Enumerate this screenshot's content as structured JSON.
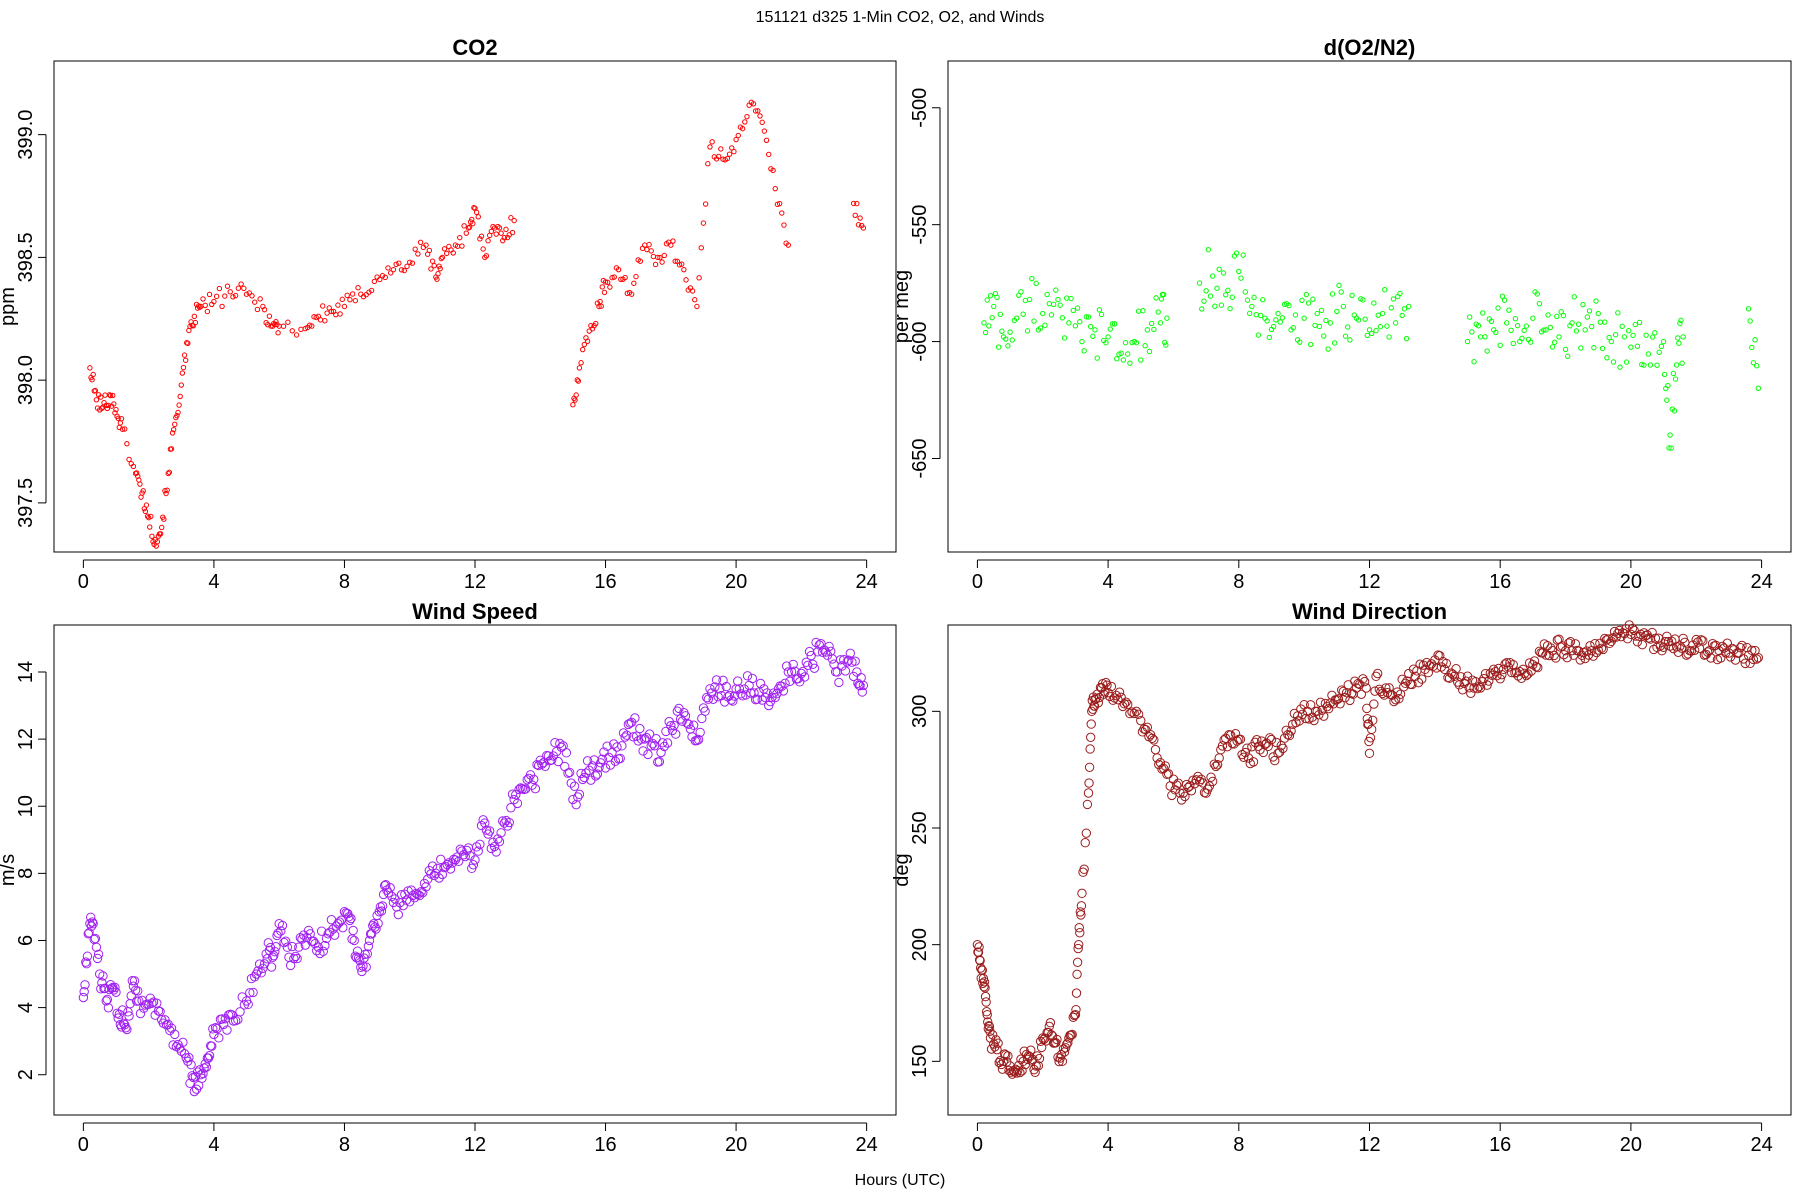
{
  "figure": {
    "title": "151121   d325   1-Min CO2, O2, and Winds",
    "xlabel": "Hours (UTC)"
  },
  "chart_data": [
    {
      "type": "scatter",
      "title": "CO2",
      "xlabel": "",
      "ylabel": "ppm",
      "xlim": [
        -0.9,
        24.9
      ],
      "ylim": [
        397.3,
        399.3
      ],
      "xticks": [
        0,
        4,
        8,
        12,
        16,
        20,
        24
      ],
      "yticks": [
        397.5,
        398.0,
        398.5,
        399.0
      ],
      "ytick_labels": [
        "397.5",
        "398.0",
        "398.5",
        "399.0"
      ],
      "grid": false,
      "marker_color": "#ff0000",
      "marker_size": "small",
      "series": [
        {
          "x": [
            0.2,
            0.4,
            0.6,
            0.8,
            1.0,
            1.2,
            1.6,
            1.8,
            2.0,
            2.2,
            2.4,
            2.6,
            2.8,
            3.0,
            3.2,
            3.4,
            3.6,
            4.0,
            4.5,
            5.0,
            5.5,
            5.8,
            6.0,
            6.8,
            7.2,
            7.6,
            8.0,
            8.5,
            9.0,
            9.5,
            10.0,
            10.5,
            10.8,
            11.0,
            11.4,
            11.8,
            12.0,
            12.3,
            12.6,
            12.9,
            13.2,
            15.0,
            15.2,
            15.5,
            15.8,
            16.0,
            16.4,
            16.8,
            17.2,
            17.6,
            18.0,
            18.4,
            18.8,
            19.2,
            19.6,
            20.0,
            20.4,
            20.8,
            21.2,
            21.6,
            23.6,
            23.9
          ],
          "y": [
            398.05,
            397.92,
            397.89,
            397.94,
            397.88,
            397.8,
            397.62,
            397.54,
            397.44,
            397.35,
            397.4,
            397.62,
            397.82,
            397.98,
            398.15,
            398.26,
            398.3,
            398.32,
            398.36,
            398.35,
            398.3,
            398.22,
            398.22,
            398.21,
            398.26,
            398.28,
            398.3,
            398.35,
            398.42,
            398.45,
            398.48,
            398.55,
            398.42,
            398.5,
            398.55,
            398.62,
            398.7,
            398.5,
            398.62,
            398.58,
            398.65,
            397.9,
            398.05,
            398.2,
            398.3,
            398.4,
            398.45,
            398.35,
            398.55,
            398.5,
            398.55,
            398.45,
            398.3,
            398.95,
            398.9,
            398.98,
            399.12,
            399.05,
            398.78,
            398.55,
            398.72,
            398.62
          ]
        }
      ]
    },
    {
      "type": "scatter",
      "title": "d(O2/N2)",
      "xlabel": "",
      "ylabel": "per meg",
      "xlim": [
        -0.9,
        24.9
      ],
      "ylim": [
        -690,
        -480
      ],
      "xticks": [
        0,
        4,
        8,
        12,
        16,
        20,
        24
      ],
      "yticks": [
        -650,
        -600,
        -550,
        -500
      ],
      "ytick_labels": [
        "-650",
        "-600",
        "-550",
        "-500"
      ],
      "grid": false,
      "marker_color": "#00ff00",
      "marker_size": "small",
      "series": [
        {
          "x": [
            0.2,
            0.5,
            0.8,
            1.2,
            1.6,
            2.0,
            2.4,
            2.8,
            3.2,
            3.6,
            4.0,
            4.4,
            4.8,
            5.2,
            5.6,
            5.8,
            6.8,
            7.2,
            7.6,
            8.0,
            8.4,
            8.8,
            9.2,
            9.6,
            10.0,
            10.4,
            10.8,
            11.2,
            11.6,
            12.0,
            12.4,
            12.8,
            13.2,
            15.0,
            15.4,
            15.8,
            16.2,
            16.6,
            17.0,
            17.4,
            17.8,
            18.2,
            18.6,
            19.0,
            19.4,
            19.8,
            20.2,
            20.6,
            21.0,
            21.2,
            21.4,
            21.6,
            23.6,
            23.9
          ],
          "y": [
            -592,
            -585,
            -598,
            -590,
            -582,
            -588,
            -578,
            -592,
            -600,
            -595,
            -598,
            -605,
            -600,
            -595,
            -592,
            -590,
            -575,
            -572,
            -580,
            -570,
            -585,
            -590,
            -588,
            -595,
            -590,
            -588,
            -592,
            -585,
            -590,
            -595,
            -588,
            -592,
            -585,
            -600,
            -598,
            -595,
            -592,
            -600,
            -590,
            -595,
            -598,
            -592,
            -595,
            -588,
            -600,
            -598,
            -602,
            -610,
            -600,
            -640,
            -610,
            -598,
            -586,
            -620
          ]
        }
      ]
    },
    {
      "type": "scatter",
      "title": "Wind Speed",
      "xlabel": "",
      "ylabel": "m/s",
      "xlim": [
        -0.9,
        24.9
      ],
      "ylim": [
        0.8,
        15.4
      ],
      "xticks": [
        0,
        4,
        8,
        12,
        16,
        20,
        24
      ],
      "yticks": [
        2,
        4,
        6,
        8,
        10,
        12,
        14
      ],
      "ytick_labels": [
        "2",
        "4",
        "6",
        "8",
        "10",
        "12",
        "14"
      ],
      "grid": false,
      "marker_color": "#a020f0",
      "marker_size": "large",
      "series": [
        {
          "x": [
            0.0,
            0.15,
            0.3,
            0.5,
            0.7,
            0.9,
            1.1,
            1.3,
            1.5,
            1.7,
            2.0,
            2.3,
            2.6,
            2.9,
            3.2,
            3.4,
            3.6,
            3.8,
            4.0,
            4.3,
            4.6,
            5.0,
            5.3,
            5.6,
            5.8,
            6.0,
            6.3,
            6.6,
            6.9,
            7.2,
            7.5,
            7.8,
            8.1,
            8.3,
            8.5,
            8.7,
            8.9,
            9.1,
            9.3,
            9.6,
            9.9,
            10.2,
            10.5,
            10.8,
            11.1,
            11.4,
            11.7,
            12.0,
            12.3,
            12.6,
            12.9,
            13.2,
            13.5,
            13.8,
            14.1,
            14.4,
            14.7,
            15.0,
            15.3,
            15.6,
            15.9,
            16.2,
            16.5,
            16.8,
            17.1,
            17.4,
            17.7,
            18.0,
            18.3,
            18.6,
            18.9,
            19.2,
            19.5,
            19.8,
            20.1,
            20.4,
            20.7,
            21.0,
            21.3,
            21.6,
            21.9,
            22.2,
            22.5,
            22.8,
            23.1,
            23.4,
            23.7,
            23.9
          ],
          "y": [
            4.3,
            6.2,
            6.5,
            5.0,
            4.2,
            4.6,
            3.8,
            3.4,
            4.8,
            4.2,
            4.1,
            3.9,
            3.5,
            2.9,
            2.4,
            1.5,
            2.0,
            2.5,
            3.2,
            3.5,
            3.6,
            4.2,
            5.0,
            5.6,
            5.5,
            6.5,
            5.5,
            5.8,
            6.3,
            5.8,
            6.2,
            6.5,
            6.8,
            6.0,
            5.2,
            5.6,
            6.5,
            7.0,
            7.5,
            7.0,
            7.2,
            7.4,
            7.6,
            8.0,
            8.2,
            8.4,
            8.5,
            8.4,
            9.5,
            8.8,
            9.5,
            10.2,
            10.5,
            10.8,
            11.3,
            11.5,
            11.8,
            10.2,
            10.8,
            11.2,
            11.4,
            11.6,
            11.8,
            12.5,
            12.0,
            11.8,
            11.6,
            12.4,
            12.6,
            12.3,
            12.2,
            13.5,
            13.5,
            13.3,
            13.5,
            13.6,
            13.4,
            13.0,
            13.5,
            14.0,
            13.8,
            14.2,
            14.6,
            14.5,
            14.0,
            14.3,
            14.0,
            13.6
          ]
        }
      ]
    },
    {
      "type": "scatter",
      "title": "Wind Direction",
      "xlabel": "",
      "ylabel": "deg",
      "xlim": [
        -0.9,
        24.9
      ],
      "ylim": [
        127,
        337
      ],
      "xticks": [
        0,
        4,
        8,
        12,
        16,
        20,
        24
      ],
      "yticks": [
        150,
        200,
        250,
        300
      ],
      "ytick_labels": [
        "150",
        "200",
        "250",
        "300"
      ],
      "grid": false,
      "marker_color": "#9b1b1b",
      "marker_size": "large",
      "series": [
        {
          "x": [
            0.0,
            0.1,
            0.2,
            0.3,
            0.4,
            0.6,
            0.8,
            1.0,
            1.2,
            1.4,
            1.6,
            1.8,
            2.0,
            2.2,
            2.4,
            2.6,
            2.8,
            3.0,
            3.1,
            3.2,
            3.4,
            3.5,
            3.6,
            3.8,
            4.0,
            4.3,
            4.6,
            5.0,
            5.3,
            5.6,
            5.9,
            6.2,
            6.5,
            6.8,
            7.1,
            7.4,
            7.7,
            8.0,
            8.3,
            8.6,
            8.9,
            9.2,
            9.5,
            9.8,
            10.1,
            10.4,
            10.7,
            11.0,
            11.3,
            11.6,
            11.9,
            12.0,
            12.2,
            12.5,
            12.8,
            13.1,
            13.4,
            13.7,
            14.0,
            14.3,
            14.6,
            14.9,
            15.2,
            15.5,
            15.8,
            16.1,
            16.4,
            16.7,
            17.0,
            17.3,
            17.6,
            17.9,
            18.2,
            18.5,
            18.8,
            19.1,
            19.4,
            19.7,
            20.0,
            20.3,
            20.6,
            20.9,
            21.2,
            21.5,
            21.8,
            22.1,
            22.4,
            22.7,
            23.0,
            23.3,
            23.6,
            23.9
          ],
          "y": [
            200,
            190,
            182,
            170,
            160,
            155,
            150,
            148,
            145,
            150,
            152,
            148,
            160,
            165,
            158,
            150,
            160,
            170,
            200,
            222,
            265,
            300,
            305,
            310,
            308,
            305,
            303,
            296,
            290,
            278,
            268,
            265,
            268,
            270,
            268,
            280,
            290,
            288,
            280,
            285,
            285,
            282,
            290,
            298,
            300,
            300,
            302,
            305,
            308,
            310,
            310,
            282,
            315,
            310,
            305,
            312,
            315,
            318,
            322,
            318,
            315,
            312,
            310,
            314,
            318,
            318,
            320,
            318,
            320,
            325,
            326,
            328,
            326,
            324,
            326,
            327,
            330,
            332,
            333,
            333,
            331,
            328,
            328,
            328,
            326,
            327,
            326,
            326,
            325,
            325,
            324,
            323
          ]
        }
      ]
    }
  ]
}
